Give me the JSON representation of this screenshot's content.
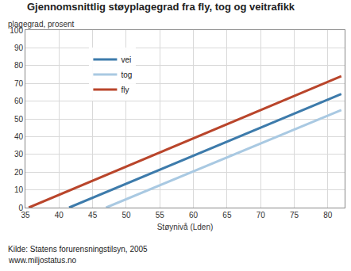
{
  "chart_data": {
    "type": "line",
    "title": "Gjennomsnittlig støyplagegrad fra fly, tog og veitrafikk",
    "y_label": "plagegrad, prosent",
    "x_label": "Støynivå (Lden)",
    "annotations": [
      "Kilde: Statens forurensningstilsyn, 2005",
      "www.miljostatus.no"
    ],
    "series": [
      {
        "name": "vei",
        "color": "#3d7bab",
        "x": [
          41.5,
          82
        ],
        "values": [
          0,
          64
        ]
      },
      {
        "name": "tog",
        "color": "#a9c9e2",
        "x": [
          47,
          82
        ],
        "values": [
          0,
          55
        ]
      },
      {
        "name": "fly",
        "color": "#b9452b",
        "x": [
          35.5,
          82
        ],
        "values": [
          0,
          74
        ]
      }
    ],
    "xlim": [
      35,
      82.5
    ],
    "xticks": [
      35,
      40,
      45,
      50,
      55,
      60,
      65,
      70,
      75,
      80
    ],
    "ylim": [
      0,
      100
    ],
    "yticks": [
      0,
      10,
      20,
      30,
      40,
      50,
      60,
      70,
      80,
      90,
      100
    ],
    "grid": true,
    "legend": "top-left"
  }
}
